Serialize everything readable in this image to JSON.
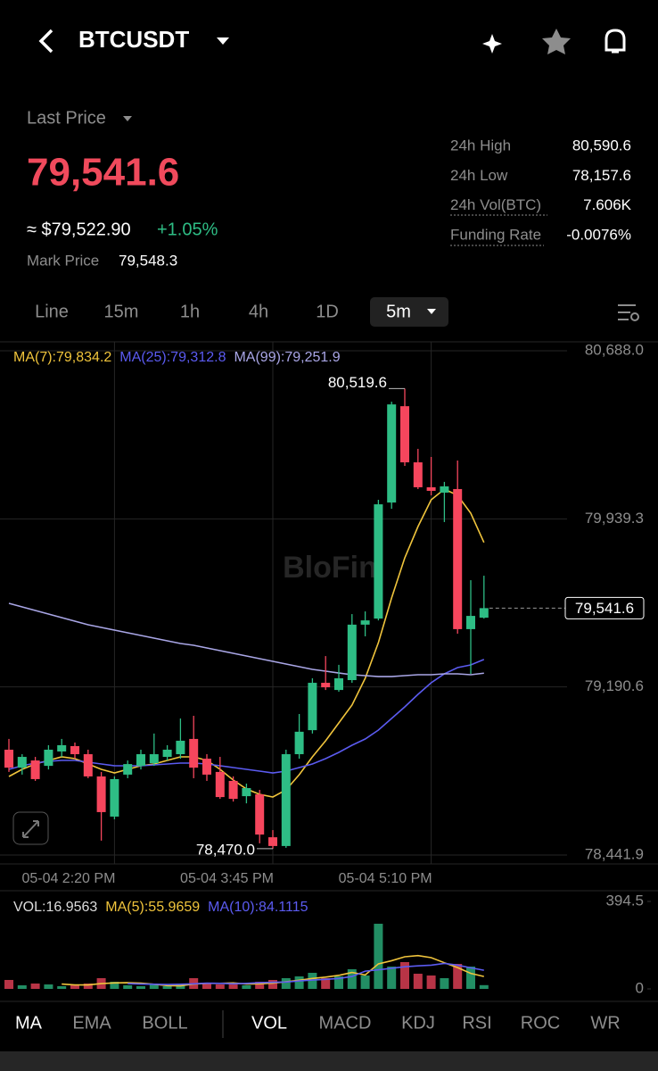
{
  "header": {
    "symbol": "BTCUSDT"
  },
  "price": {
    "label": "Last Price",
    "last": "79,541.6",
    "usd": "≈ $79,522.90",
    "change": "+1.05%",
    "mark_label": "Mark Price",
    "mark": "79,548.3"
  },
  "stats": [
    [
      "24h High",
      "80,590.6"
    ],
    [
      "24h Low",
      "78,157.6"
    ],
    [
      "24h Vol(BTC)",
      "7.606K"
    ],
    [
      "Funding Rate",
      "-0.0076%"
    ]
  ],
  "intervals": {
    "items": [
      "Line",
      "15m",
      "1h",
      "4h",
      "1D",
      "5m"
    ],
    "selected": 5
  },
  "indicators": {
    "main": [
      "MA",
      "EMA",
      "BOLL"
    ],
    "sub": [
      "VOL",
      "MACD",
      "KDJ",
      "RSI",
      "ROC",
      "WR"
    ],
    "selected_main": 0,
    "selected_sub": 0
  },
  "chart_data": [
    {
      "type": "candlestick",
      "watermark": "BloFin",
      "categories": [
        null,
        null,
        null,
        null,
        null,
        null,
        null,
        null,
        "05-04 2:20 PM",
        null,
        null,
        null,
        null,
        null,
        null,
        null,
        null,
        null,
        null,
        null,
        "05-04 3:45 PM",
        null,
        null,
        null,
        null,
        null,
        null,
        null,
        null,
        null,
        null,
        null,
        "05-04 5:10 PM",
        null,
        null,
        null,
        null
      ],
      "open": [
        78911,
        78831,
        78863,
        78839,
        78903,
        78927,
        78891,
        78792,
        78613,
        78800,
        78839,
        78851,
        78879,
        78891,
        78959,
        78871,
        78812,
        78772,
        78704,
        78712,
        78521,
        78482,
        78891,
        78998,
        79209,
        79177,
        79221,
        79468,
        79495,
        80012,
        80441,
        80191,
        80080,
        80056,
        80072,
        79448,
        79499
      ],
      "high": [
        78959,
        78891,
        78879,
        78931,
        78959,
        78943,
        78911,
        78812,
        78792,
        78863,
        78911,
        78983,
        78931,
        79050,
        79062,
        78891,
        78879,
        78792,
        78760,
        78732,
        78553,
        78911,
        79070,
        79229,
        79328,
        79289,
        79515,
        79527,
        80024,
        80461,
        80519.6,
        80251,
        80215,
        80104,
        80199,
        79666,
        79686
      ],
      "low": [
        78812,
        78800,
        78772,
        78823,
        78879,
        78871,
        78784,
        78506,
        78601,
        78784,
        78823,
        78839,
        78863,
        78871,
        78784,
        78772,
        78692,
        78680,
        78672,
        78494,
        78470.0,
        78474,
        78871,
        78983,
        79177,
        79169,
        79209,
        79416,
        79487,
        79984,
        80175,
        80072,
        80044,
        79925,
        79428,
        79249,
        79495
      ],
      "close": [
        78831,
        78879,
        78780,
        78911,
        78931,
        78891,
        78792,
        78633,
        78780,
        78847,
        78891,
        78891,
        78911,
        78951,
        78831,
        78800,
        78700,
        78692,
        78740,
        78533,
        78482,
        78891,
        78991,
        79209,
        79189,
        79229,
        79468,
        79487,
        80004,
        80449,
        80191,
        80080,
        80064,
        80084,
        79448,
        79507,
        79541.6
      ],
      "up_color": "#2ebd85",
      "down_color": "#f6465d",
      "series": [
        {
          "name": "MA(7):79,834.2",
          "color": "#f0c43c",
          "values": [
            78791.7,
            78823.5,
            78847.4,
            78863.3,
            78879.2,
            78871.2,
            78847.4,
            78823.5,
            78807.6,
            78823.5,
            78839.4,
            78847.4,
            78863.3,
            78879.2,
            78879.2,
            78863.3,
            78823.5,
            78775.8,
            78736.1,
            78712.2,
            78700.3,
            78732.1,
            78799.7,
            78879.2,
            78950.8,
            79030.3,
            79109.8,
            79229.0,
            79388.0,
            79586.8,
            79765.7,
            79904.8,
            80024.1,
            80071.8,
            80044.0,
            79964.5,
            79834.2
          ]
        },
        {
          "name": "MA(25):79,312.8",
          "color": "#5b5bf0",
          "values": [
            78823.5,
            78839.4,
            78851.4,
            78859.3,
            78863.3,
            78863.3,
            78855.3,
            78847.4,
            78839.4,
            78839.4,
            78839.4,
            78843.4,
            78847.4,
            78851.4,
            78851.4,
            78847.4,
            78839.4,
            78831.5,
            78823.5,
            78815.6,
            78807.6,
            78815.6,
            78831.5,
            78847.4,
            78871.2,
            78899.1,
            78930.9,
            78958.7,
            78998.5,
            79050.2,
            79101.8,
            79157.5,
            79209.2,
            79248.9,
            79276.7,
            79288.7,
            79312.8
          ]
        },
        {
          "name": "MA(99):79,251.9",
          "color": "#a9a6e6",
          "values": [
            79563.0,
            79547.1,
            79531.2,
            79515.3,
            79499.4,
            79483.4,
            79467.6,
            79455.6,
            79443.7,
            79431.7,
            79419.8,
            79407.9,
            79396.0,
            79384.0,
            79376.1,
            79364.2,
            79352.3,
            79340.3,
            79328.4,
            79316.5,
            79304.5,
            79292.6,
            79280.7,
            79268.8,
            79260.8,
            79252.8,
            79244.9,
            79240.9,
            79236.9,
            79236.9,
            79240.9,
            79244.9,
            79244.9,
            79248.9,
            79248.9,
            79244.9,
            79251.9
          ]
        }
      ],
      "annotations": [
        {
          "value": 80519.6,
          "label": "80,519.6"
        },
        {
          "value": 78470.0,
          "label": "78,470.0"
        }
      ],
      "last_price": {
        "value": 79541.6,
        "label": "79,541.6"
      },
      "ylim": [
        78441.9,
        80688.0
      ],
      "yticks": [
        {
          "value": 80688.0,
          "label": "80,688.0"
        },
        {
          "value": 79939.3,
          "label": "79,939.3"
        },
        {
          "value": 79190.6,
          "label": "79,190.6"
        },
        {
          "value": 78441.9,
          "label": "78,441.9"
        }
      ]
    },
    {
      "type": "bar",
      "label": "VOL:16.9563",
      "values": [
        40.3,
        16.1,
        24.2,
        20.1,
        12.1,
        16.1,
        24.2,
        48.3,
        32.2,
        16.1,
        12.1,
        20.1,
        12.1,
        20.1,
        48.3,
        24.2,
        20.1,
        24.2,
        16.1,
        32.2,
        40.3,
        48.3,
        56.4,
        72.5,
        48.3,
        56.4,
        88.6,
        60.4,
        293.8,
        100.6,
        120.8,
        68.4,
        60.4,
        48.3,
        112.7,
        100.6,
        16.9563
      ],
      "series": [
        {
          "name": "MA(5):55.9659",
          "color": "#f0c43c",
          "values": [
            null,
            null,
            null,
            null,
            22,
            18,
            18,
            24,
            27,
            28,
            26,
            21,
            15,
            14,
            22,
            25,
            25,
            27,
            22,
            23,
            26,
            32,
            39,
            47,
            53,
            61,
            74,
            63,
            113,
            127,
            145,
            150,
            141,
            118,
            96,
            70,
            55.9659
          ]
        },
        {
          "name": "MA(10):84.1115",
          "color": "#5b5bf0",
          "values": [
            null,
            null,
            null,
            null,
            null,
            null,
            null,
            null,
            null,
            24,
            22,
            21,
            20,
            21,
            23,
            26,
            25,
            23,
            25,
            28,
            30,
            31,
            36,
            40,
            43,
            47,
            56,
            80,
            86,
            93,
            100,
            104,
            107,
            115,
            107,
            95,
            84.1115
          ]
        }
      ],
      "ylim": [
        0,
        394.5
      ],
      "yticks": [
        {
          "value": 394.5,
          "label": "394.5"
        },
        0
      ]
    }
  ]
}
